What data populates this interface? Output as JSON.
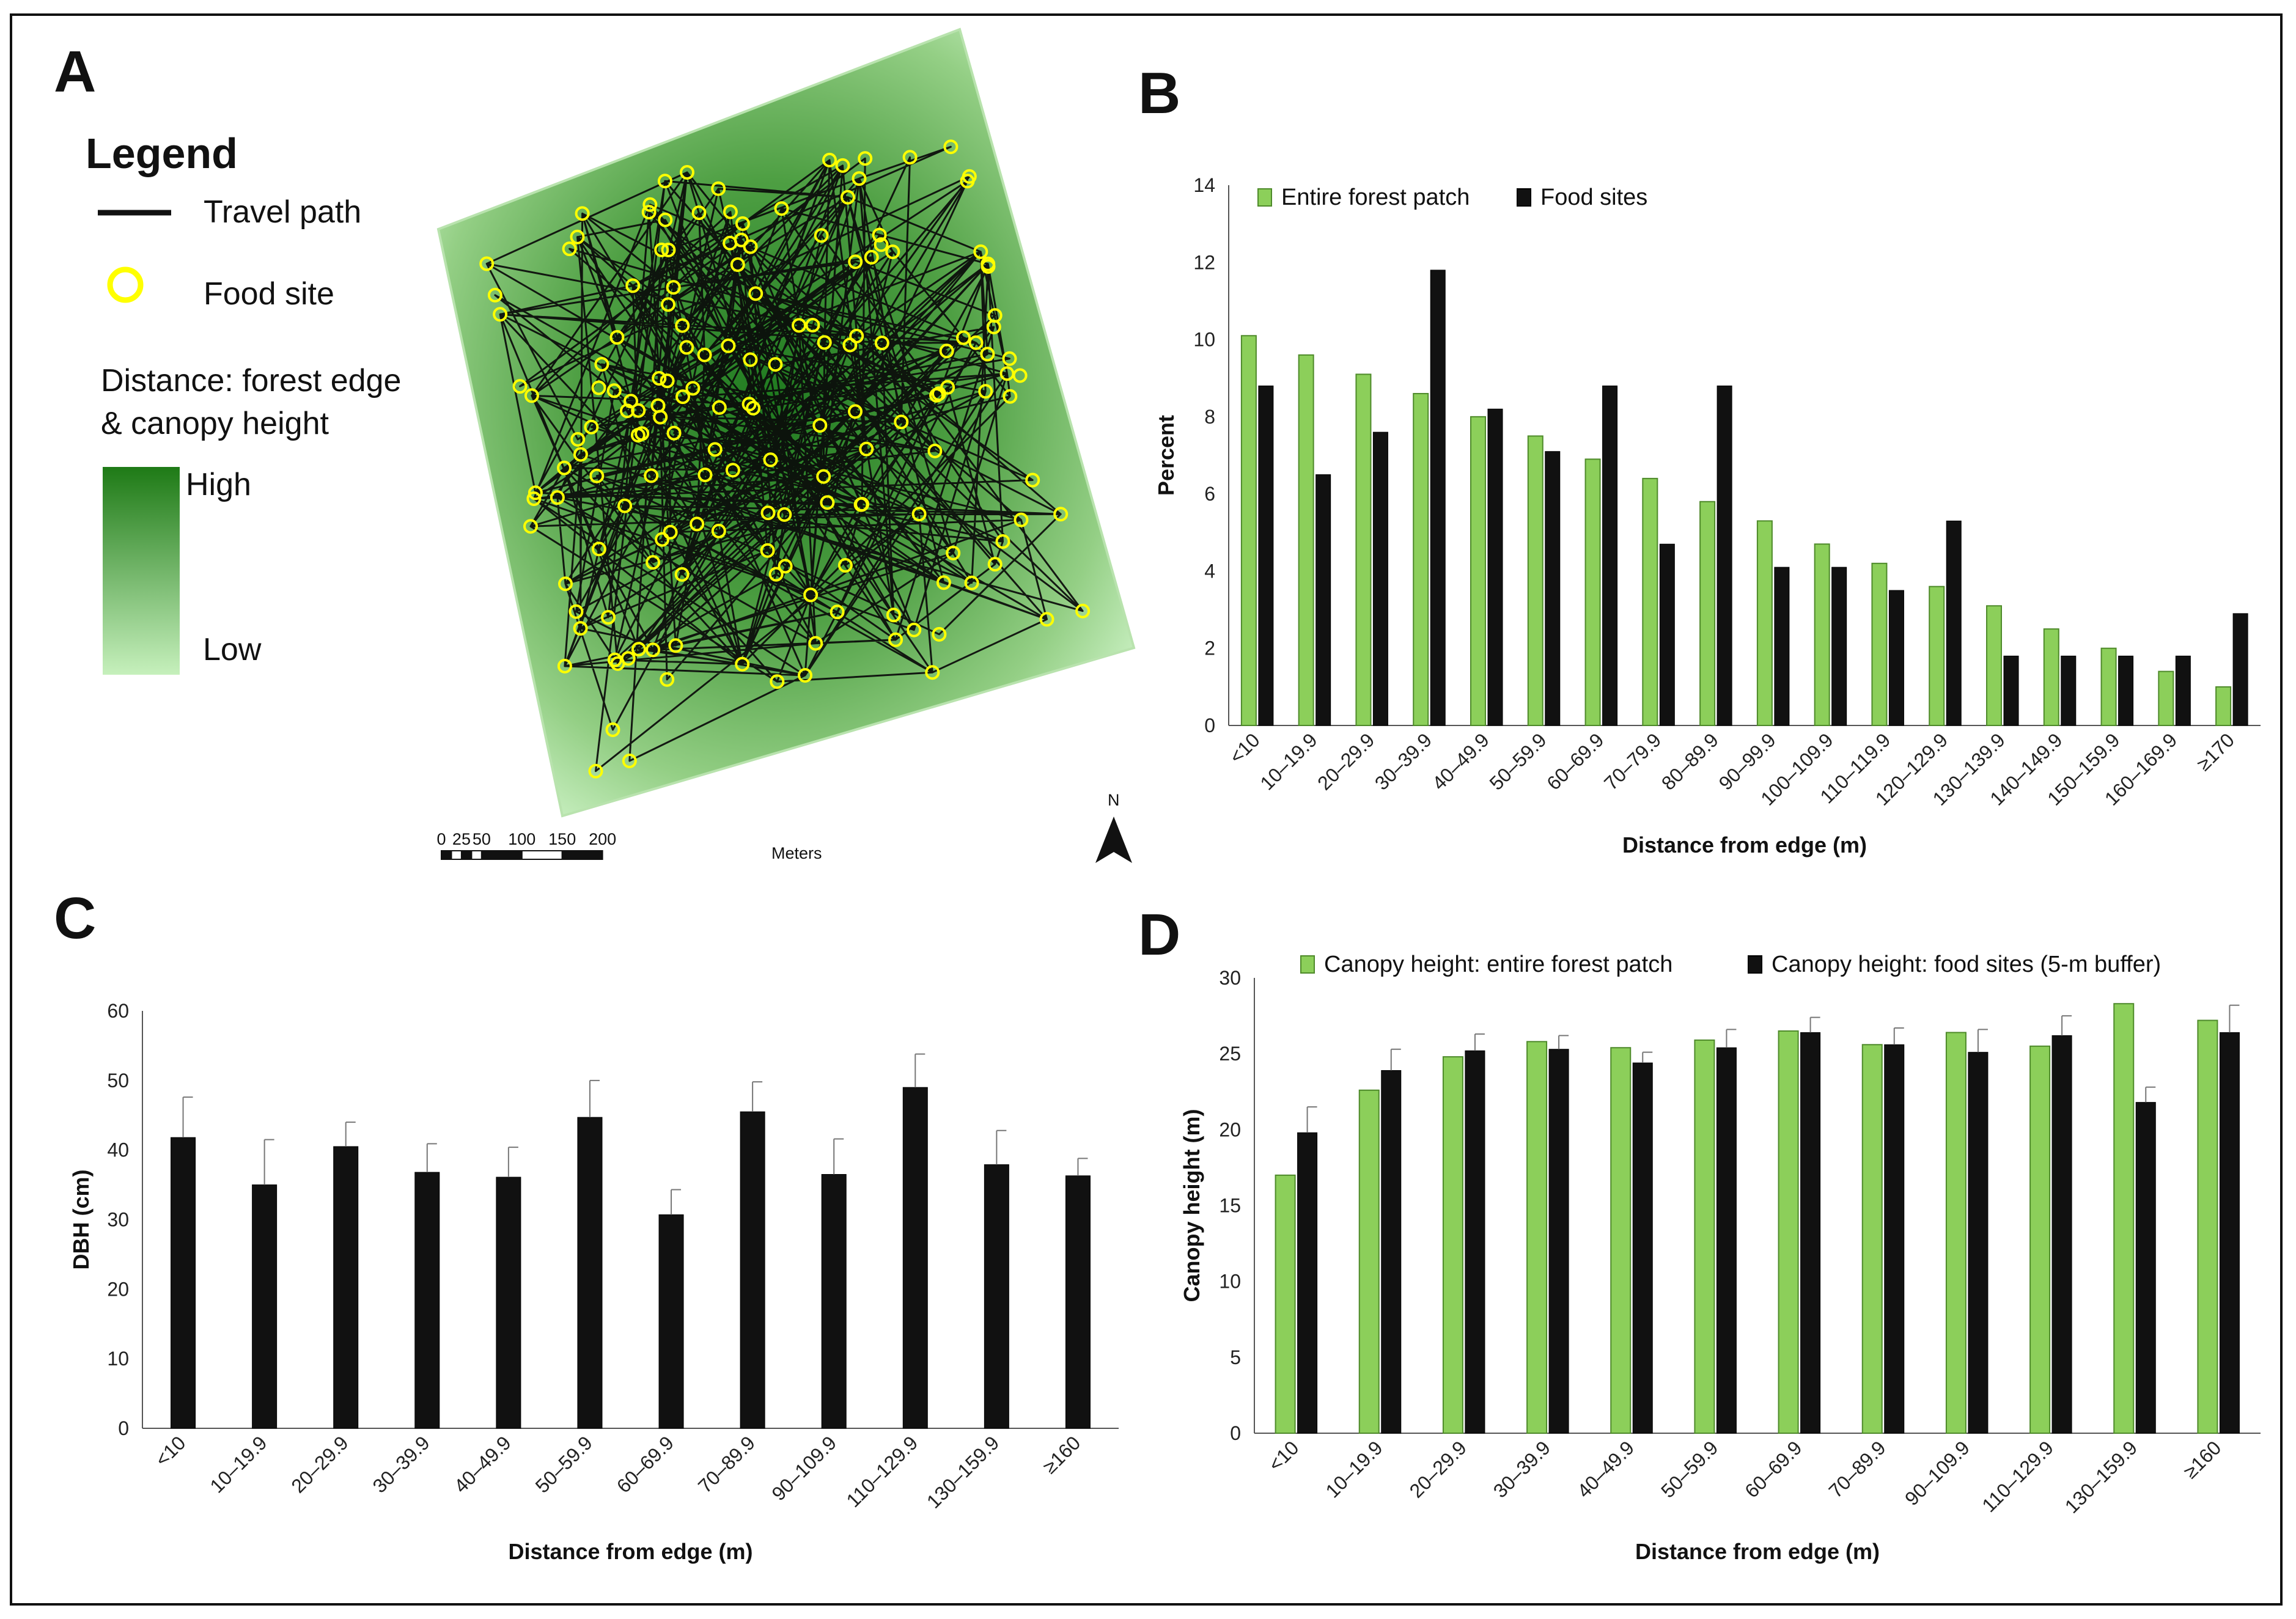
{
  "colors": {
    "green": "#8ccf5a",
    "green_stroke": "#4e8a2a",
    "black": "#111111",
    "map_dark": "#1f7a1f",
    "map_light": "#c8efc0",
    "food_site": "#ffff00"
  },
  "panel_a": {
    "letter": "A",
    "legend": {
      "title": "Legend",
      "travel_path": "Travel path",
      "food_site": "Food site",
      "distance_line1": "Distance: forest edge",
      "distance_line2": "& canopy height",
      "high": "High",
      "low": "Low"
    },
    "scalebar": {
      "ticks": [
        "0",
        "25",
        "50",
        "100",
        "150",
        "200"
      ],
      "unit": "Meters"
    },
    "north": "N",
    "icons": [
      "travel-path-line-icon",
      "food-site-circle-icon",
      "gradient-ramp-icon",
      "north-arrow-icon"
    ]
  },
  "chart_data": [
    {
      "panel": "B",
      "type": "bar",
      "title": "",
      "xlabel": "Distance from edge (m)",
      "ylabel": "Percent",
      "ylim": [
        0,
        14
      ],
      "yticks": [
        "0",
        "2",
        "4",
        "6",
        "8",
        "10",
        "12",
        "14"
      ],
      "categories": [
        "<10",
        "10–19.9",
        "20–29.9",
        "30–39.9",
        "40–49.9",
        "50–59.9",
        "60–69.9",
        "70–79.9",
        "80–89.9",
        "90–99.9",
        "100–109.9",
        "110–119.9",
        "120–129.9",
        "130–139.9",
        "140–149.9",
        "150–159.9",
        "160–169.9",
        "≥170"
      ],
      "series": [
        {
          "name": "Entire forest patch",
          "color": "#8ccf5a",
          "values": [
            10.1,
            9.6,
            9.1,
            8.6,
            8.0,
            7.5,
            6.9,
            6.4,
            5.8,
            5.3,
            4.7,
            4.2,
            3.6,
            3.1,
            2.5,
            2.0,
            1.4,
            1.0
          ]
        },
        {
          "name": "Food sites",
          "color": "#111111",
          "values": [
            8.8,
            6.5,
            7.6,
            11.8,
            8.2,
            7.1,
            8.8,
            4.7,
            8.8,
            4.1,
            4.1,
            3.5,
            5.3,
            1.8,
            1.8,
            1.8,
            1.8,
            2.9
          ]
        }
      ],
      "legend_position": "top-left"
    },
    {
      "panel": "C",
      "type": "bar",
      "title": "",
      "xlabel": "Distance from edge (m)",
      "ylabel": "DBH (cm)",
      "ylim": [
        0,
        60
      ],
      "yticks": [
        "0",
        "10",
        "20",
        "30",
        "40",
        "50",
        "60"
      ],
      "categories": [
        "<10",
        "10–19.9",
        "20–29.9",
        "30–39.9",
        "40–49.9",
        "50–59.9",
        "60–69.9",
        "70–89.9",
        "90–109.9",
        "110–129.9",
        "130–159.9",
        "≥160"
      ],
      "series": [
        {
          "name": "DBH",
          "color": "#111111",
          "values": [
            41.8,
            35.0,
            40.5,
            36.8,
            36.1,
            44.7,
            30.7,
            45.5,
            36.5,
            49.0,
            37.9,
            36.3
          ],
          "error": [
            5.8,
            6.5,
            3.5,
            4.1,
            4.3,
            5.3,
            3.6,
            4.3,
            5.1,
            4.8,
            4.9,
            2.5
          ]
        }
      ]
    },
    {
      "panel": "D",
      "type": "bar",
      "title": "",
      "xlabel": "Distance from edge (m)",
      "ylabel": "Canopy height (m)",
      "ylim": [
        0,
        30
      ],
      "yticks": [
        "0",
        "5",
        "10",
        "15",
        "20",
        "25",
        "30"
      ],
      "categories": [
        "<10",
        "10–19.9",
        "20–29.9",
        "30–39.9",
        "40–49.9",
        "50–59.9",
        "60–69.9",
        "70–89.9",
        "90–109.9",
        "110–129.9",
        "130–159.9",
        "≥160"
      ],
      "series": [
        {
          "name": "Canopy height: entire forest patch",
          "color": "#8ccf5a",
          "values": [
            17.0,
            22.6,
            24.8,
            25.8,
            25.4,
            25.9,
            26.5,
            25.6,
            26.4,
            25.5,
            28.3,
            27.2
          ],
          "error": [
            0,
            0,
            0,
            0,
            0,
            0,
            0,
            0,
            0,
            0,
            0,
            0
          ]
        },
        {
          "name": "Canopy height: food sites (5-m buffer)",
          "color": "#111111",
          "values": [
            19.8,
            23.9,
            25.2,
            25.3,
            24.4,
            25.4,
            26.4,
            25.6,
            25.1,
            26.2,
            21.8,
            26.4
          ],
          "error": [
            1.7,
            1.4,
            1.1,
            0.9,
            0.7,
            1.2,
            1.0,
            1.1,
            1.5,
            1.3,
            1.0,
            1.8
          ]
        }
      ],
      "legend_position": "top"
    }
  ]
}
